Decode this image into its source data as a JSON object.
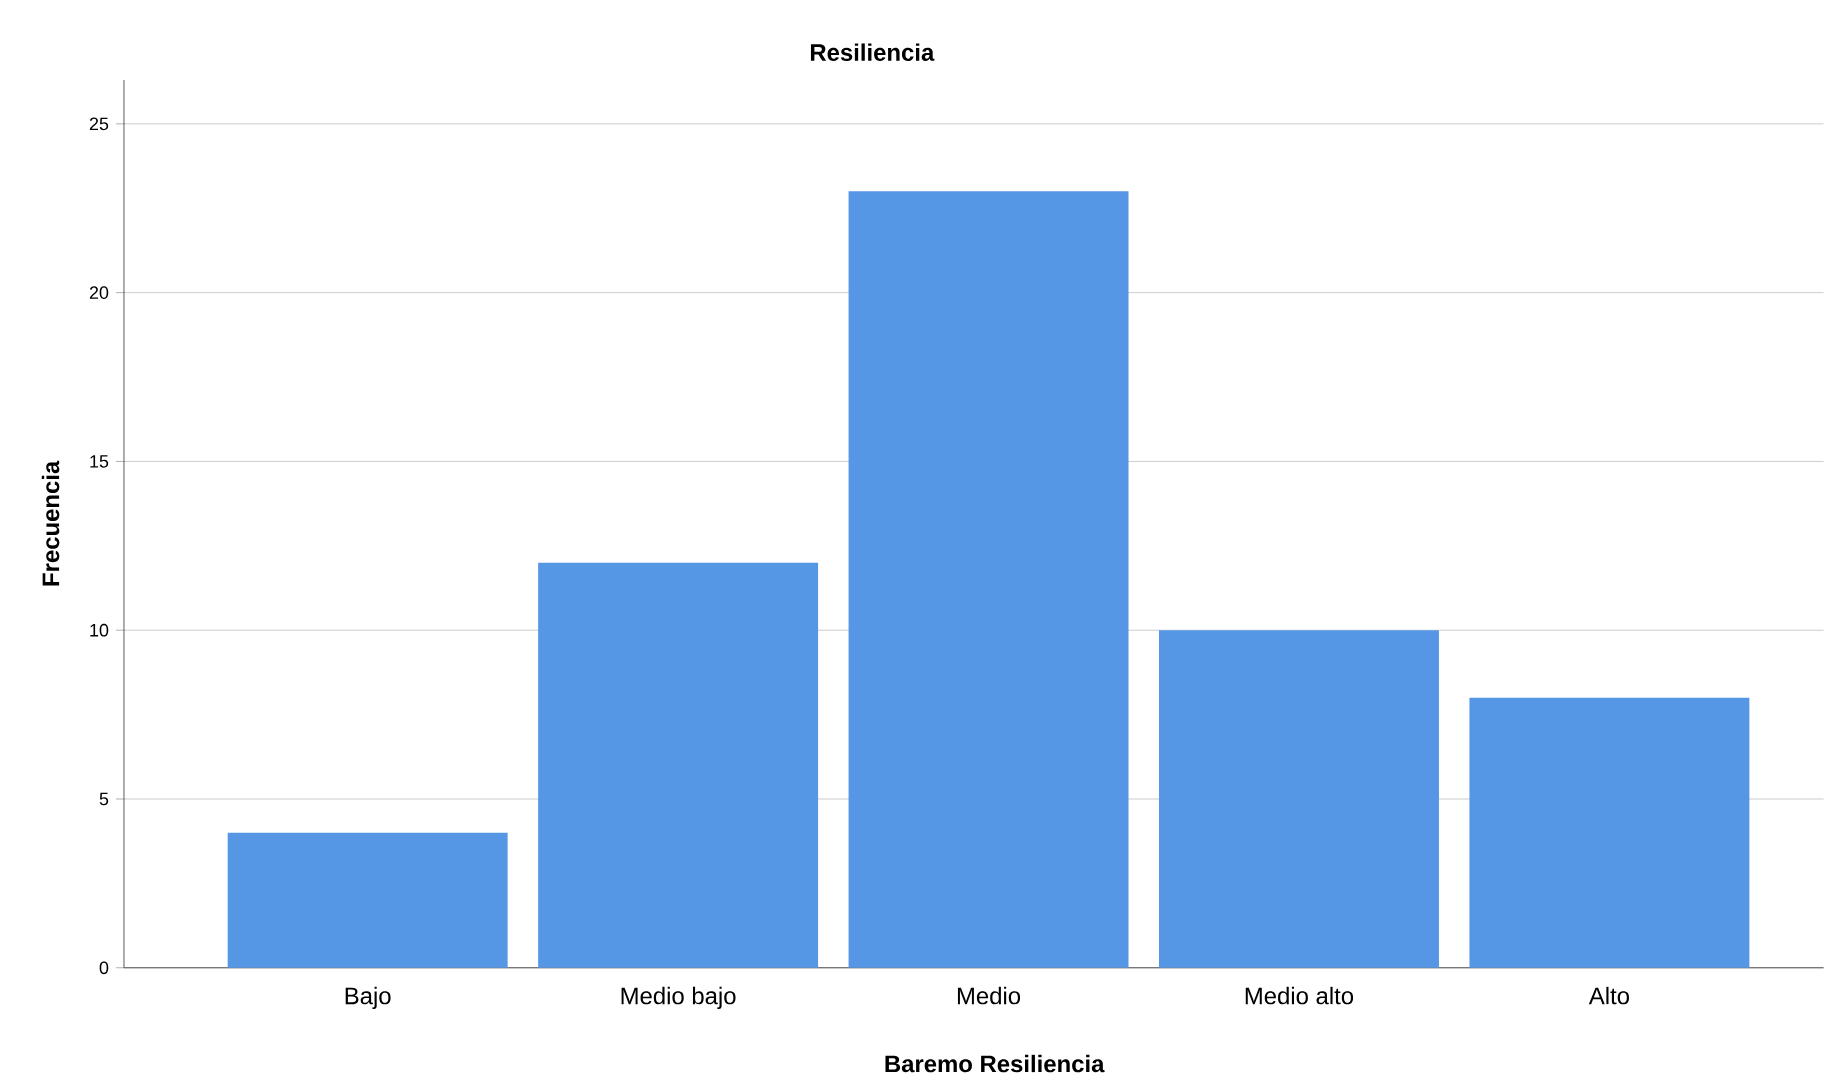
{
  "chart_data": {
    "type": "bar",
    "title": "Resiliencia",
    "xlabel": "Baremo Resiliencia",
    "ylabel": "Frecuencia",
    "categories": [
      "Bajo",
      "Medio bajo",
      "Medio",
      "Medio alto",
      "Alto"
    ],
    "values": [
      4,
      12,
      23,
      10,
      8
    ],
    "color": "#5596e5",
    "ylim": [
      0,
      26.3
    ],
    "yticks": [
      0,
      5,
      10,
      15,
      20,
      25
    ],
    "grid": "y"
  }
}
